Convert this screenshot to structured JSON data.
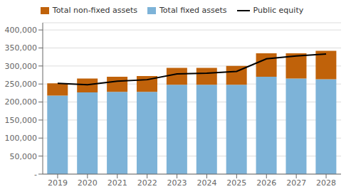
{
  "chart_data": {
    "type": "bar",
    "stacked": true,
    "grid": true,
    "legend": "top",
    "categories": [
      "2019",
      "2020",
      "2021",
      "2022",
      "2023",
      "2024",
      "2025",
      "2026",
      "2027",
      "2028"
    ],
    "series": [
      {
        "name": "Total non-fixed assets",
        "type": "bar",
        "color": "#c0620a",
        "values": [
          34000,
          38000,
          42000,
          44000,
          47000,
          47000,
          52000,
          65000,
          70000,
          79000
        ]
      },
      {
        "name": "Total fixed assets",
        "type": "bar",
        "color": "#7db3d8",
        "values": [
          218000,
          227000,
          228000,
          228000,
          248000,
          248000,
          248000,
          270000,
          265000,
          263000
        ]
      },
      {
        "name": "Public equity",
        "type": "line",
        "color": "#000000",
        "values": [
          252000,
          248000,
          258000,
          262000,
          278000,
          280000,
          285000,
          320000,
          328000,
          333000
        ]
      }
    ],
    "ylim": [
      0,
      420000
    ],
    "yticks": [
      {
        "value": 0,
        "label": "-"
      },
      {
        "value": 50000,
        "label": "50,000"
      },
      {
        "value": 100000,
        "label": "100,000"
      },
      {
        "value": 150000,
        "label": "150,000"
      },
      {
        "value": 200000,
        "label": "200,000"
      },
      {
        "value": 250000,
        "label": "250,000"
      },
      {
        "value": 300000,
        "label": "300,000"
      },
      {
        "value": 350000,
        "label": "350,000"
      },
      {
        "value": 400000,
        "label": "400,000"
      }
    ]
  }
}
